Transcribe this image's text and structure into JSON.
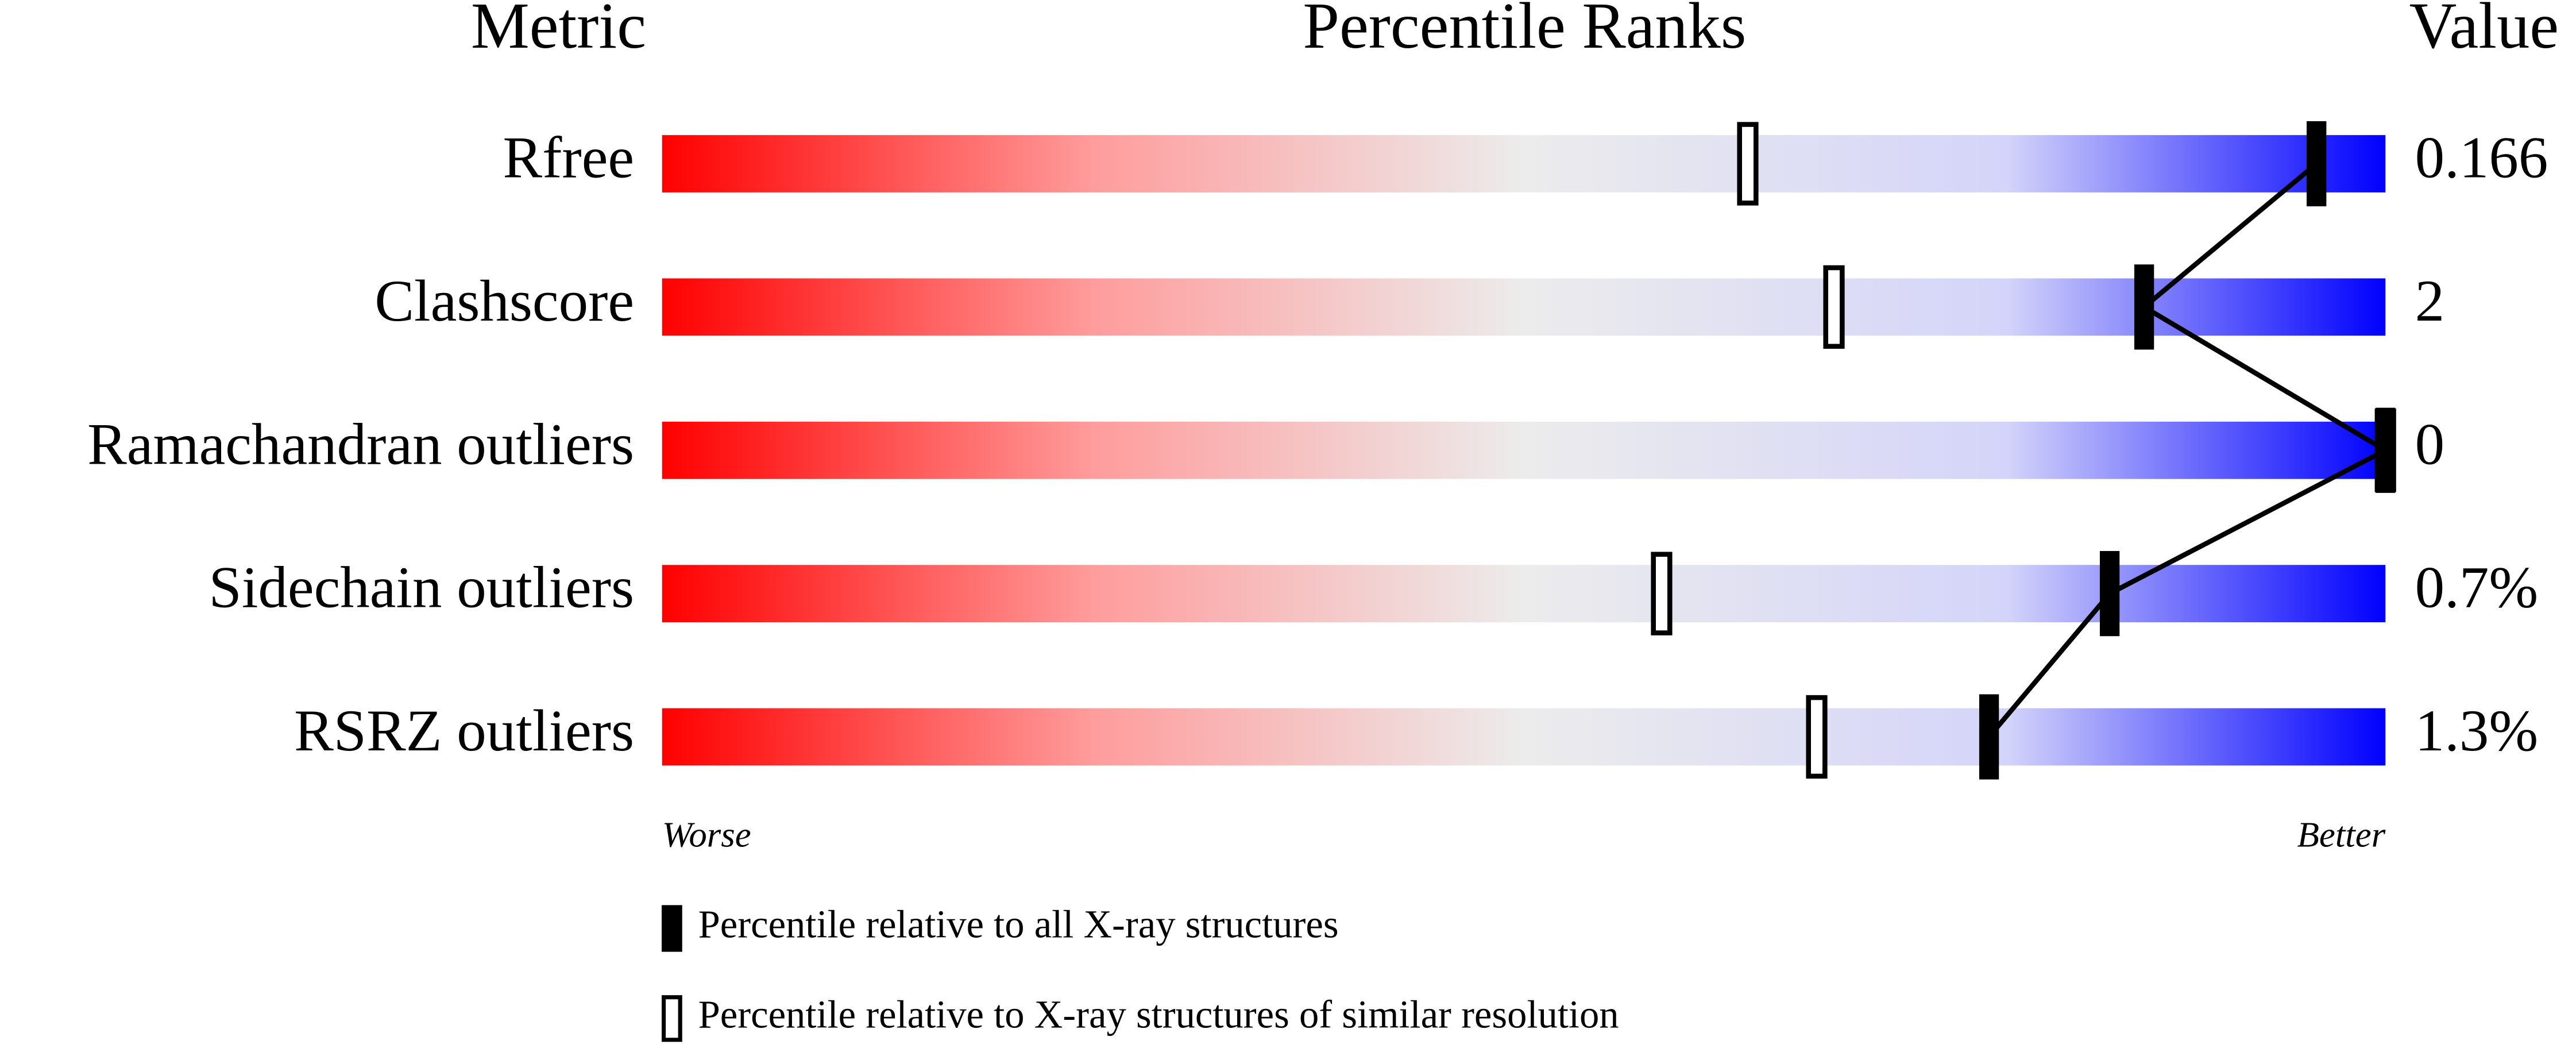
{
  "chart_data": {
    "type": "percentile-slider",
    "headers": [
      "Metric",
      "Percentile Ranks",
      "Value"
    ],
    "categories": [
      "Rfree",
      "Clashscore",
      "Ramachandran outliers",
      "Sidechain outliers",
      "RSRZ outliers"
    ],
    "metric_values": [
      "0.166",
      "2",
      "0",
      "0.7%",
      "1.3%"
    ],
    "xlim": [
      0,
      100
    ],
    "series": [
      {
        "name": "Percentile relative to all X-ray structures",
        "color": "#000000",
        "values": [
          96,
          86,
          100,
          84,
          77
        ]
      },
      {
        "name": "Percentile relative to X-ray structures of similar resolution",
        "color": "#ffffff",
        "values": [
          63,
          68,
          100,
          58,
          67
        ]
      }
    ],
    "worse_label": "Worse",
    "better_label": "Better"
  }
}
